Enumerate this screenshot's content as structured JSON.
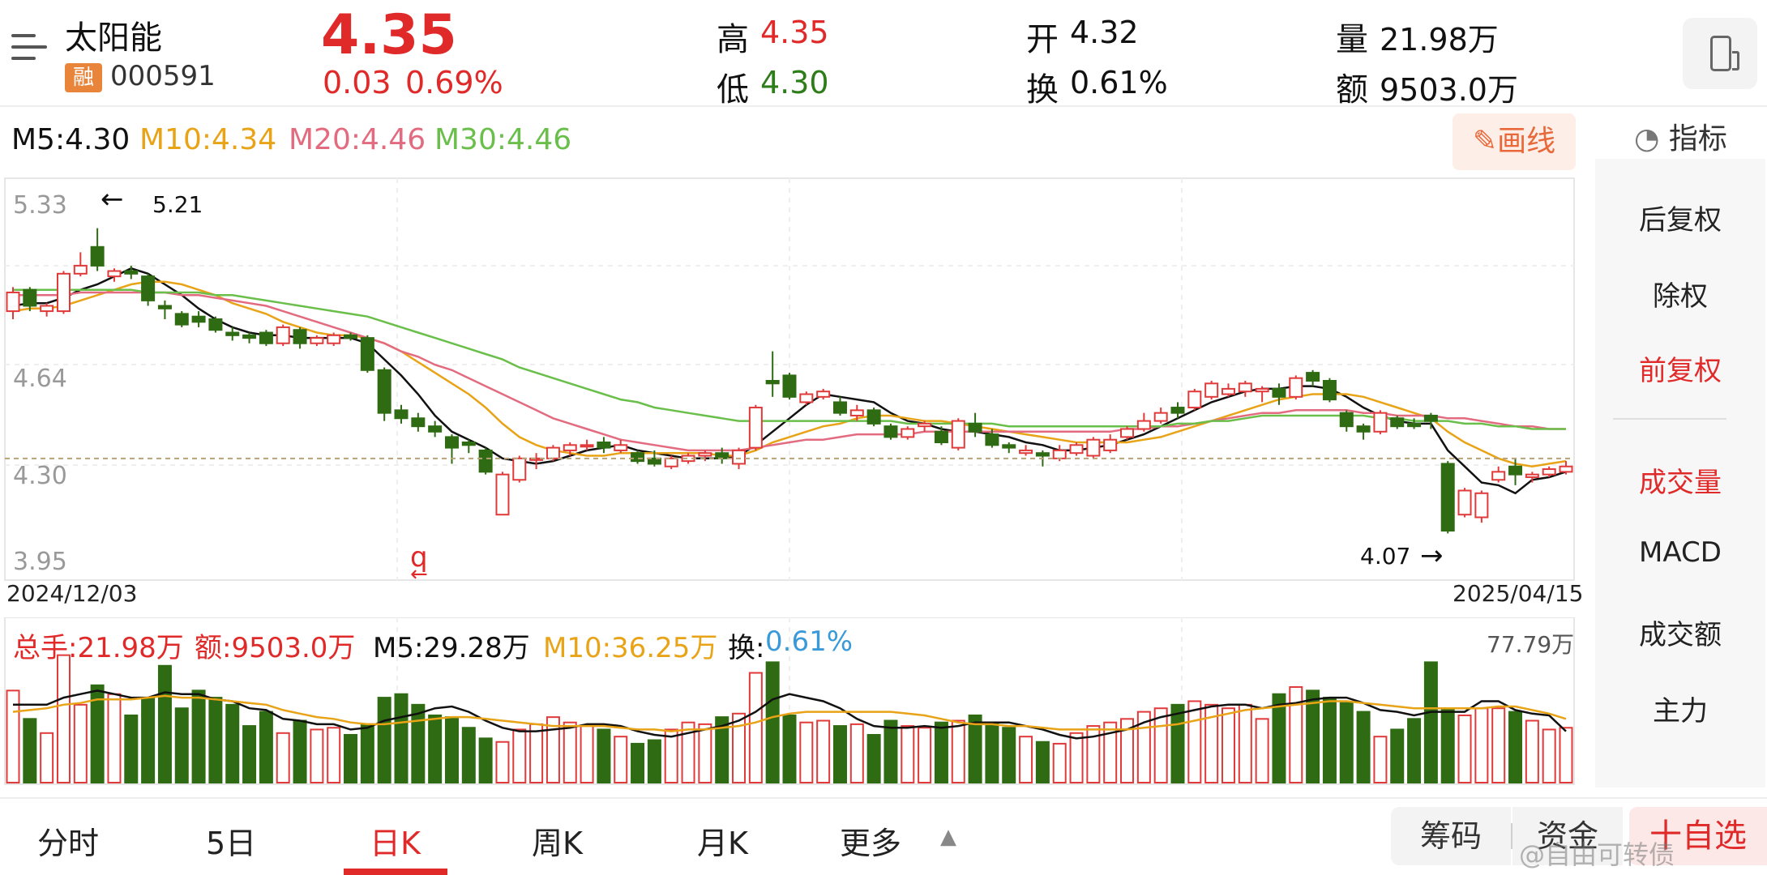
{
  "header": {
    "name": "太阳能",
    "badge": "融",
    "code": "000591",
    "price": "4.35",
    "change": "0.03",
    "change_pct": "0.69%",
    "high_label": "高",
    "high": "4.35",
    "low_label": "低",
    "low": "4.30",
    "open_label": "开",
    "open": "4.32",
    "turnover_label": "换",
    "turnover": "0.61%",
    "volume_label": "量",
    "volume": "21.98万",
    "amount_label": "额",
    "amount": "9503.0万"
  },
  "ma_line": {
    "m5": "M5:4.30",
    "m10": "M10:4.34",
    "m20": "M20:4.46",
    "m30": "M30:4.46",
    "colors": {
      "m5": "#111111",
      "m10": "#e8a317",
      "m20": "#e36b7f",
      "m30": "#6abf4b"
    }
  },
  "draw_button": "画线",
  "indicator_header": "指标",
  "side_menu": [
    "后复权",
    "除权",
    "前复权",
    "成交量",
    "MACD",
    "成交额",
    "主力"
  ],
  "price_axis": [
    "5.33",
    "4.64",
    "4.30",
    "3.95"
  ],
  "annotations": {
    "high_label": "5.21",
    "low_label": "4.07"
  },
  "dates": {
    "start": "2024/12/03",
    "end": "2025/04/15"
  },
  "volume_info": {
    "total": "总手:21.98万",
    "amount": "额:9503.0万",
    "m5": "M5:29.28万",
    "m10": "M10:36.25万",
    "turnover_label": "换:",
    "turnover_value": "0.61%",
    "max": "77.79万"
  },
  "tabs": [
    "分时",
    "5日",
    "日K",
    "周K",
    "月K",
    "更多"
  ],
  "buttons": {
    "chips": "筹码",
    "funds": "资金",
    "add": "十自选"
  },
  "watermark": "@自由可转债",
  "chart_data": {
    "type": "candlestick",
    "ylim": [
      3.95,
      5.33
    ],
    "candles": [
      {
        "o": 4.9,
        "c": 4.97,
        "h": 4.99,
        "l": 4.87
      },
      {
        "o": 4.98,
        "c": 4.92,
        "h": 4.99,
        "l": 4.9
      },
      {
        "o": 4.9,
        "c": 4.92,
        "h": 4.93,
        "l": 4.88
      },
      {
        "o": 4.9,
        "c": 5.04,
        "h": 5.05,
        "l": 4.89
      },
      {
        "o": 5.04,
        "c": 5.07,
        "h": 5.12,
        "l": 5.03
      },
      {
        "o": 5.14,
        "c": 5.07,
        "h": 5.21,
        "l": 5.05
      },
      {
        "o": 5.03,
        "c": 5.05,
        "h": 5.06,
        "l": 5.01
      },
      {
        "o": 5.05,
        "c": 5.04,
        "h": 5.07,
        "l": 5.02
      },
      {
        "o": 5.03,
        "c": 4.94,
        "h": 5.04,
        "l": 4.92
      },
      {
        "o": 4.92,
        "c": 4.91,
        "h": 4.94,
        "l": 4.87
      },
      {
        "o": 4.89,
        "c": 4.85,
        "h": 4.9,
        "l": 4.84
      },
      {
        "o": 4.88,
        "c": 4.86,
        "h": 4.9,
        "l": 4.84
      },
      {
        "o": 4.87,
        "c": 4.83,
        "h": 4.88,
        "l": 4.82
      },
      {
        "o": 4.82,
        "c": 4.81,
        "h": 4.84,
        "l": 4.79
      },
      {
        "o": 4.81,
        "c": 4.8,
        "h": 4.82,
        "l": 4.78
      },
      {
        "o": 4.82,
        "c": 4.78,
        "h": 4.83,
        "l": 4.77
      },
      {
        "o": 4.78,
        "c": 4.84,
        "h": 4.85,
        "l": 4.77
      },
      {
        "o": 4.83,
        "c": 4.78,
        "h": 4.84,
        "l": 4.76
      },
      {
        "o": 4.78,
        "c": 4.8,
        "h": 4.81,
        "l": 4.77
      },
      {
        "o": 4.78,
        "c": 4.81,
        "h": 4.82,
        "l": 4.77
      },
      {
        "o": 4.81,
        "c": 4.8,
        "h": 4.82,
        "l": 4.79
      },
      {
        "o": 4.8,
        "c": 4.68,
        "h": 4.81,
        "l": 4.67
      },
      {
        "o": 4.68,
        "c": 4.52,
        "h": 4.69,
        "l": 4.49
      },
      {
        "o": 4.53,
        "c": 4.5,
        "h": 4.55,
        "l": 4.48
      },
      {
        "o": 4.5,
        "c": 4.47,
        "h": 4.52,
        "l": 4.45
      },
      {
        "o": 4.47,
        "c": 4.45,
        "h": 4.49,
        "l": 4.43
      },
      {
        "o": 4.43,
        "c": 4.39,
        "h": 4.44,
        "l": 4.33
      },
      {
        "o": 4.41,
        "c": 4.4,
        "h": 4.42,
        "l": 4.37
      },
      {
        "o": 4.38,
        "c": 4.3,
        "h": 4.39,
        "l": 4.29
      },
      {
        "o": 4.14,
        "c": 4.29,
        "h": 4.3,
        "l": 4.14
      },
      {
        "o": 4.27,
        "c": 4.35,
        "h": 4.36,
        "l": 4.26
      },
      {
        "o": 4.35,
        "c": 4.35,
        "h": 4.37,
        "l": 4.31
      },
      {
        "o": 4.35,
        "c": 4.39,
        "h": 4.4,
        "l": 4.34
      },
      {
        "o": 4.38,
        "c": 4.4,
        "h": 4.41,
        "l": 4.36
      },
      {
        "o": 4.4,
        "c": 4.4,
        "h": 4.42,
        "l": 4.38
      },
      {
        "o": 4.41,
        "c": 4.39,
        "h": 4.43,
        "l": 4.37
      },
      {
        "o": 4.38,
        "c": 4.4,
        "h": 4.42,
        "l": 4.37
      },
      {
        "o": 4.37,
        "c": 4.34,
        "h": 4.38,
        "l": 4.33
      },
      {
        "o": 4.35,
        "c": 4.33,
        "h": 4.38,
        "l": 4.32
      },
      {
        "o": 4.32,
        "c": 4.35,
        "h": 4.36,
        "l": 4.31
      },
      {
        "o": 4.34,
        "c": 4.36,
        "h": 4.37,
        "l": 4.33
      },
      {
        "o": 4.36,
        "c": 4.37,
        "h": 4.38,
        "l": 4.34
      },
      {
        "o": 4.37,
        "c": 4.35,
        "h": 4.39,
        "l": 4.33
      },
      {
        "o": 4.33,
        "c": 4.38,
        "h": 4.39,
        "l": 4.31
      },
      {
        "o": 4.39,
        "c": 4.54,
        "h": 4.55,
        "l": 4.38
      },
      {
        "o": 4.64,
        "c": 4.63,
        "h": 4.75,
        "l": 4.58
      },
      {
        "o": 4.66,
        "c": 4.58,
        "h": 4.67,
        "l": 4.57
      },
      {
        "o": 4.56,
        "c": 4.59,
        "h": 4.6,
        "l": 4.55
      },
      {
        "o": 4.58,
        "c": 4.6,
        "h": 4.61,
        "l": 4.57
      },
      {
        "o": 4.56,
        "c": 4.52,
        "h": 4.58,
        "l": 4.51
      },
      {
        "o": 4.51,
        "c": 4.53,
        "h": 4.55,
        "l": 4.49
      },
      {
        "o": 4.53,
        "c": 4.48,
        "h": 4.54,
        "l": 4.47
      },
      {
        "o": 4.47,
        "c": 4.43,
        "h": 4.48,
        "l": 4.42
      },
      {
        "o": 4.43,
        "c": 4.46,
        "h": 4.47,
        "l": 4.42
      },
      {
        "o": 4.47,
        "c": 4.48,
        "h": 4.49,
        "l": 4.45
      },
      {
        "o": 4.45,
        "c": 4.41,
        "h": 4.47,
        "l": 4.4
      },
      {
        "o": 4.39,
        "c": 4.49,
        "h": 4.5,
        "l": 4.38
      },
      {
        "o": 4.48,
        "c": 4.45,
        "h": 4.52,
        "l": 4.43
      },
      {
        "o": 4.44,
        "c": 4.4,
        "h": 4.46,
        "l": 4.39
      },
      {
        "o": 4.4,
        "c": 4.39,
        "h": 4.41,
        "l": 4.37
      },
      {
        "o": 4.37,
        "c": 4.38,
        "h": 4.4,
        "l": 4.36
      },
      {
        "o": 4.37,
        "c": 4.36,
        "h": 4.38,
        "l": 4.32
      },
      {
        "o": 4.35,
        "c": 4.38,
        "h": 4.4,
        "l": 4.34
      },
      {
        "o": 4.37,
        "c": 4.4,
        "h": 4.41,
        "l": 4.36
      },
      {
        "o": 4.36,
        "c": 4.42,
        "h": 4.43,
        "l": 4.35
      },
      {
        "o": 4.38,
        "c": 4.42,
        "h": 4.44,
        "l": 4.37
      },
      {
        "o": 4.43,
        "c": 4.46,
        "h": 4.47,
        "l": 4.42
      },
      {
        "o": 4.46,
        "c": 4.49,
        "h": 4.52,
        "l": 4.45
      },
      {
        "o": 4.49,
        "c": 4.52,
        "h": 4.54,
        "l": 4.48
      },
      {
        "o": 4.54,
        "c": 4.52,
        "h": 4.56,
        "l": 4.5
      },
      {
        "o": 4.54,
        "c": 4.6,
        "h": 4.61,
        "l": 4.53
      },
      {
        "o": 4.58,
        "c": 4.63,
        "h": 4.64,
        "l": 4.57
      },
      {
        "o": 4.59,
        "c": 4.61,
        "h": 4.63,
        "l": 4.58
      },
      {
        "o": 4.6,
        "c": 4.63,
        "h": 4.64,
        "l": 4.58
      },
      {
        "o": 4.6,
        "c": 4.61,
        "h": 4.62,
        "l": 4.56
      },
      {
        "o": 4.61,
        "c": 4.58,
        "h": 4.63,
        "l": 4.55
      },
      {
        "o": 4.58,
        "c": 4.65,
        "h": 4.66,
        "l": 4.57
      },
      {
        "o": 4.67,
        "c": 4.64,
        "h": 4.68,
        "l": 4.62
      },
      {
        "o": 4.64,
        "c": 4.57,
        "h": 4.65,
        "l": 4.56
      },
      {
        "o": 4.52,
        "c": 4.47,
        "h": 4.53,
        "l": 4.45
      },
      {
        "o": 4.47,
        "c": 4.45,
        "h": 4.48,
        "l": 4.42
      },
      {
        "o": 4.45,
        "c": 4.52,
        "h": 4.53,
        "l": 4.44
      },
      {
        "o": 4.5,
        "c": 4.47,
        "h": 4.51,
        "l": 4.46
      },
      {
        "o": 4.48,
        "c": 4.47,
        "h": 4.5,
        "l": 4.46
      },
      {
        "o": 4.51,
        "c": 4.49,
        "h": 4.52,
        "l": 4.46
      },
      {
        "o": 4.33,
        "c": 4.08,
        "h": 4.34,
        "l": 4.07
      },
      {
        "o": 4.14,
        "c": 4.23,
        "h": 4.24,
        "l": 4.13
      },
      {
        "o": 4.13,
        "c": 4.22,
        "h": 4.23,
        "l": 4.11
      },
      {
        "o": 4.27,
        "c": 4.3,
        "h": 4.32,
        "l": 4.26
      },
      {
        "o": 4.32,
        "c": 4.29,
        "h": 4.35,
        "l": 4.25
      },
      {
        "o": 4.28,
        "c": 4.29,
        "h": 4.3,
        "l": 4.26
      },
      {
        "o": 4.29,
        "c": 4.31,
        "h": 4.32,
        "l": 4.28
      },
      {
        "o": 4.3,
        "c": 4.32,
        "h": 4.34,
        "l": 4.29
      }
    ],
    "ma_lines": {
      "m5": [
        4.92,
        4.93,
        4.93,
        4.95,
        4.98,
        5.0,
        5.03,
        5.06,
        5.04,
        5.0,
        4.96,
        4.91,
        4.87,
        4.84,
        4.82,
        4.81,
        4.81,
        4.8,
        4.8,
        4.8,
        4.8,
        4.78,
        4.72,
        4.66,
        4.59,
        4.51,
        4.45,
        4.42,
        4.39,
        4.35,
        4.34,
        4.33,
        4.34,
        4.36,
        4.38,
        4.39,
        4.4,
        4.38,
        4.37,
        4.36,
        4.35,
        4.35,
        4.35,
        4.36,
        4.4,
        4.45,
        4.5,
        4.55,
        4.59,
        4.58,
        4.57,
        4.56,
        4.52,
        4.49,
        4.48,
        4.46,
        4.45,
        4.45,
        4.44,
        4.43,
        4.41,
        4.4,
        4.38,
        4.38,
        4.39,
        4.4,
        4.42,
        4.44,
        4.47,
        4.5,
        4.53,
        4.56,
        4.58,
        4.6,
        4.61,
        4.61,
        4.62,
        4.62,
        4.61,
        4.58,
        4.54,
        4.51,
        4.49,
        4.48,
        4.48,
        4.38,
        4.32,
        4.26,
        4.25,
        4.22,
        4.27,
        4.28,
        4.3
      ],
      "m10": [
        4.9,
        4.91,
        4.91,
        4.92,
        4.94,
        4.96,
        4.98,
        5.0,
        5.01,
        5.01,
        5.0,
        4.98,
        4.96,
        4.93,
        4.91,
        4.89,
        4.86,
        4.84,
        4.82,
        4.81,
        4.81,
        4.8,
        4.78,
        4.75,
        4.71,
        4.67,
        4.63,
        4.59,
        4.54,
        4.48,
        4.43,
        4.4,
        4.38,
        4.37,
        4.36,
        4.36,
        4.37,
        4.37,
        4.37,
        4.37,
        4.37,
        4.37,
        4.36,
        4.36,
        4.38,
        4.41,
        4.43,
        4.45,
        4.47,
        4.48,
        4.5,
        4.51,
        4.51,
        4.5,
        4.49,
        4.49,
        4.48,
        4.47,
        4.46,
        4.45,
        4.44,
        4.43,
        4.42,
        4.41,
        4.41,
        4.41,
        4.41,
        4.42,
        4.43,
        4.45,
        4.47,
        4.49,
        4.51,
        4.53,
        4.55,
        4.57,
        4.58,
        4.59,
        4.59,
        4.59,
        4.58,
        4.56,
        4.54,
        4.52,
        4.5,
        4.45,
        4.41,
        4.38,
        4.35,
        4.33,
        4.32,
        4.33,
        4.34
      ],
      "m20": [
        4.96,
        4.96,
        4.96,
        4.96,
        4.97,
        4.97,
        4.97,
        4.97,
        4.97,
        4.97,
        4.96,
        4.96,
        4.95,
        4.94,
        4.93,
        4.92,
        4.9,
        4.88,
        4.86,
        4.84,
        4.82,
        4.8,
        4.78,
        4.75,
        4.73,
        4.7,
        4.68,
        4.65,
        4.62,
        4.59,
        4.56,
        4.53,
        4.5,
        4.48,
        4.46,
        4.44,
        4.42,
        4.41,
        4.4,
        4.39,
        4.38,
        4.38,
        4.38,
        4.38,
        4.39,
        4.4,
        4.41,
        4.42,
        4.42,
        4.43,
        4.44,
        4.44,
        4.44,
        4.44,
        4.45,
        4.45,
        4.45,
        4.45,
        4.45,
        4.45,
        4.45,
        4.45,
        4.45,
        4.45,
        4.45,
        4.45,
        4.46,
        4.46,
        4.47,
        4.47,
        4.48,
        4.49,
        4.5,
        4.51,
        4.52,
        4.52,
        4.53,
        4.53,
        4.53,
        4.53,
        4.52,
        4.52,
        4.51,
        4.51,
        4.51,
        4.5,
        4.5,
        4.49,
        4.48,
        4.47,
        4.47,
        4.46,
        4.46
      ],
      "m30": [
        4.98,
        4.98,
        4.98,
        4.98,
        4.98,
        4.98,
        4.98,
        4.98,
        4.97,
        4.97,
        4.97,
        4.97,
        4.96,
        4.96,
        4.95,
        4.94,
        4.93,
        4.92,
        4.91,
        4.9,
        4.89,
        4.88,
        4.86,
        4.84,
        4.82,
        4.8,
        4.78,
        4.76,
        4.74,
        4.72,
        4.69,
        4.67,
        4.65,
        4.63,
        4.61,
        4.59,
        4.57,
        4.56,
        4.54,
        4.53,
        4.52,
        4.51,
        4.5,
        4.49,
        4.49,
        4.49,
        4.49,
        4.49,
        4.49,
        4.49,
        4.49,
        4.49,
        4.49,
        4.48,
        4.48,
        4.48,
        4.48,
        4.48,
        4.48,
        4.47,
        4.47,
        4.47,
        4.47,
        4.47,
        4.47,
        4.47,
        4.47,
        4.47,
        4.47,
        4.48,
        4.48,
        4.49,
        4.49,
        4.5,
        4.51,
        4.51,
        4.51,
        4.51,
        4.51,
        4.51,
        4.51,
        4.5,
        4.5,
        4.49,
        4.49,
        4.49,
        4.48,
        4.48,
        4.47,
        4.47,
        4.46,
        4.46,
        4.46
      ]
    },
    "volumes": [
      52,
      36,
      28,
      72,
      44,
      55,
      50,
      38,
      48,
      66,
      42,
      52,
      48,
      44,
      32,
      40,
      28,
      35,
      30,
      31,
      27,
      33,
      48,
      50,
      44,
      38,
      37,
      31,
      25,
      23,
      30,
      33,
      37,
      34,
      32,
      30,
      26,
      22,
      24,
      30,
      34,
      33,
      37,
      39,
      62,
      68,
      38,
      34,
      35,
      32,
      33,
      27,
      35,
      32,
      31,
      34,
      35,
      38,
      34,
      31,
      26,
      23,
      22,
      28,
      32,
      34,
      36,
      40,
      42,
      44,
      46,
      44,
      42,
      44,
      36,
      50,
      54,
      52,
      48,
      45,
      40,
      26,
      30,
      36,
      68,
      42,
      38,
      42,
      42,
      40,
      35,
      30,
      31
    ],
    "volume_ma": {
      "m5": [
        44,
        44,
        44,
        48,
        50,
        52,
        50,
        48,
        48,
        51,
        50,
        50,
        47,
        46,
        42,
        41,
        36,
        35,
        33,
        33,
        30,
        31,
        35,
        37,
        39,
        42,
        43,
        40,
        35,
        31,
        29,
        29,
        30,
        31,
        33,
        33,
        32,
        29,
        27,
        26,
        28,
        30,
        32,
        35,
        40,
        47,
        50,
        48,
        46,
        42,
        36,
        32,
        31,
        31,
        32,
        31,
        32,
        34,
        34,
        34,
        32,
        30,
        27,
        25,
        26,
        28,
        30,
        34,
        37,
        39,
        41,
        43,
        44,
        44,
        42,
        44,
        45,
        47,
        48,
        48,
        45,
        41,
        40,
        38,
        40,
        40,
        40,
        46,
        46,
        41,
        39,
        38,
        29
      ],
      "m10": [
        40,
        41,
        42,
        44,
        45,
        47,
        47,
        47,
        48,
        49,
        48,
        48,
        47,
        46,
        45,
        44,
        41,
        39,
        37,
        36,
        34,
        33,
        33,
        34,
        35,
        36,
        37,
        37,
        36,
        35,
        34,
        33,
        32,
        32,
        32,
        32,
        31,
        30,
        30,
        29,
        30,
        30,
        31,
        32,
        34,
        37,
        39,
        40,
        40,
        40,
        40,
        40,
        40,
        39,
        38,
        36,
        34,
        33,
        33,
        32,
        32,
        31,
        30,
        30,
        30,
        30,
        30,
        31,
        32,
        33,
        35,
        37,
        39,
        41,
        42,
        43,
        44,
        45,
        46,
        46,
        45,
        44,
        43,
        42,
        42,
        42,
        42,
        42,
        43,
        43,
        41,
        39,
        36
      ]
    },
    "vol_max": 77.79
  }
}
